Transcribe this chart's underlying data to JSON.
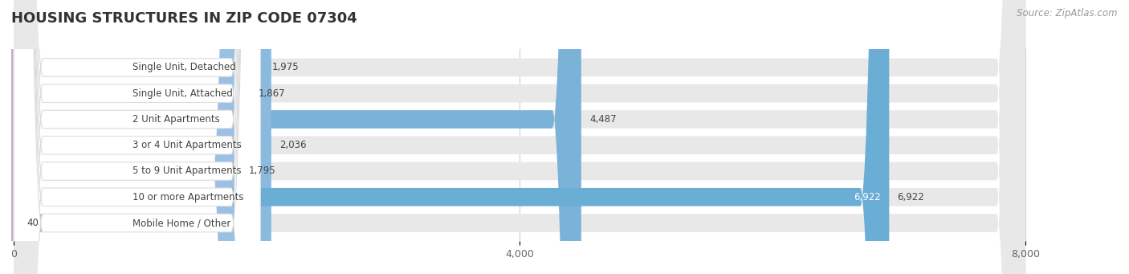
{
  "title": "HOUSING STRUCTURES IN ZIP CODE 07304",
  "source": "Source: ZipAtlas.com",
  "categories": [
    "Single Unit, Detached",
    "Single Unit, Attached",
    "2 Unit Apartments",
    "3 or 4 Unit Apartments",
    "5 to 9 Unit Apartments",
    "10 or more Apartments",
    "Mobile Home / Other"
  ],
  "values": [
    1975,
    1867,
    4487,
    2036,
    1795,
    6922,
    40
  ],
  "bar_colors": [
    "#f9c08a",
    "#ed9b96",
    "#7ab2d8",
    "#8bbae0",
    "#9ac0e3",
    "#6aaed6",
    "#cca8cc"
  ],
  "bar_bg_color": "#e8e8e8",
  "xlim_max": 8000,
  "xticks": [
    0,
    4000,
    8000
  ],
  "value_labels": [
    "1,975",
    "1,867",
    "4,487",
    "2,036",
    "1,795",
    "6,922",
    "40"
  ],
  "background_color": "#ffffff",
  "title_fontsize": 13,
  "label_fontsize": 8.5,
  "tick_fontsize": 9,
  "source_fontsize": 8.5
}
